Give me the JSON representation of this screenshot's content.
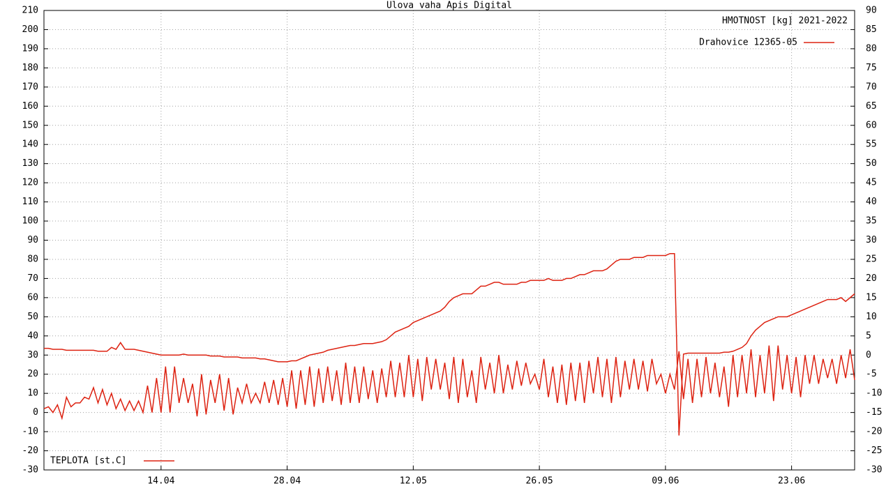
{
  "chart_data": {
    "type": "line",
    "title": "Ulova vaha Apis Digital",
    "annotation": "HMOTNOST [kg] 2021-2022",
    "categories": [
      null,
      null,
      null,
      null,
      null,
      null,
      null,
      null,
      null,
      null,
      null,
      null,
      null,
      null,
      null,
      null,
      null,
      null,
      null,
      null,
      null,
      null,
      null,
      null,
      null,
      null,
      "14.04",
      null,
      null,
      null,
      null,
      null,
      null,
      null,
      null,
      null,
      null,
      null,
      null,
      null,
      null,
      null,
      null,
      null,
      null,
      null,
      null,
      null,
      null,
      null,
      null,
      null,
      null,
      null,
      "28.04",
      null,
      null,
      null,
      null,
      null,
      null,
      null,
      null,
      null,
      null,
      null,
      null,
      null,
      null,
      null,
      null,
      null,
      null,
      null,
      null,
      null,
      null,
      null,
      null,
      null,
      null,
      null,
      "12.05",
      null,
      null,
      null,
      null,
      null,
      null,
      null,
      null,
      null,
      null,
      null,
      null,
      null,
      null,
      null,
      null,
      null,
      null,
      null,
      null,
      null,
      null,
      null,
      null,
      null,
      null,
      null,
      "26.05",
      null,
      null,
      null,
      null,
      null,
      null,
      null,
      null,
      null,
      null,
      null,
      null,
      null,
      null,
      null,
      null,
      null,
      null,
      null,
      null,
      null,
      null,
      null,
      null,
      null,
      null,
      null,
      "09.06",
      null,
      null,
      null,
      null,
      null,
      null,
      null,
      null,
      null,
      null,
      null,
      null,
      null,
      null,
      null,
      null,
      null,
      null,
      null,
      null,
      null,
      null,
      null,
      null,
      null,
      null,
      null,
      "23.06",
      null,
      null,
      null,
      null,
      null,
      null,
      null,
      null,
      null,
      null,
      null,
      null,
      null,
      null
    ],
    "series": [
      {
        "name": "Drahovice 12365-05",
        "color": "#dd2211",
        "values": [
          33.5,
          33.5,
          33,
          33,
          33,
          32.5,
          32.5,
          32.5,
          32.5,
          32.5,
          32.5,
          32.5,
          32,
          32,
          32,
          34,
          33,
          36.5,
          33,
          33,
          33,
          32.5,
          32,
          31.5,
          31,
          30.5,
          30,
          30,
          30,
          30,
          30,
          30.5,
          30,
          30,
          30,
          30,
          30,
          29.5,
          29.5,
          29.5,
          29,
          29,
          29,
          29,
          28.5,
          28.5,
          28.5,
          28.5,
          28,
          28,
          27.5,
          27,
          26.5,
          26.5,
          26.5,
          27,
          27,
          28,
          29,
          30,
          30.5,
          31,
          31.5,
          32.5,
          33,
          33.5,
          34,
          34.5,
          35,
          35,
          35.5,
          36,
          36,
          36,
          36.5,
          37,
          38,
          40,
          42,
          43,
          44,
          45,
          47,
          48,
          49,
          50,
          51,
          52,
          53,
          55,
          58,
          60,
          61,
          62,
          62,
          62,
          64,
          66,
          66,
          67,
          68,
          68,
          67,
          67,
          67,
          67,
          68,
          68,
          69,
          69,
          69,
          69,
          70,
          69,
          69,
          69,
          70,
          70,
          71,
          72,
          72,
          73,
          74,
          74,
          74,
          75,
          77,
          79,
          80,
          80,
          80,
          81,
          81,
          81,
          82,
          82,
          82,
          82,
          82,
          83,
          83,
          -12,
          30.5,
          31,
          31,
          31,
          31,
          31,
          31,
          31,
          31,
          31.5,
          31.5,
          32,
          33,
          34,
          36,
          40,
          43,
          45,
          47,
          48,
          49,
          50,
          50,
          50,
          51,
          52,
          53,
          54,
          55,
          56,
          57,
          58,
          59,
          59,
          59,
          60,
          58,
          60,
          62
        ]
      },
      {
        "name": "TEPLOTA [st.C]",
        "color": "#dd2211",
        "values": [
          2,
          3,
          0,
          4,
          -3,
          8,
          3,
          5,
          5,
          8,
          7,
          13,
          5,
          12,
          4,
          10,
          2,
          7,
          1,
          6,
          1,
          6,
          0,
          14,
          0,
          18,
          0,
          24,
          0,
          24,
          5,
          18,
          5,
          15,
          -2,
          20,
          -1,
          17,
          5,
          20,
          1,
          18,
          -1,
          13,
          5,
          15,
          5,
          10,
          5,
          16,
          5,
          17,
          4,
          18,
          3,
          22,
          2,
          22,
          4,
          24,
          3,
          23,
          5,
          24,
          6,
          22,
          4,
          26,
          5,
          24,
          5,
          24,
          7,
          22,
          5,
          23,
          8,
          27,
          8,
          26,
          8,
          30,
          8,
          28,
          6,
          29,
          12,
          28,
          12,
          26,
          7,
          29,
          5,
          28,
          8,
          22,
          5,
          29,
          12,
          26,
          10,
          30,
          10,
          25,
          12,
          27,
          14,
          26,
          15,
          20,
          12,
          28,
          8,
          24,
          5,
          25,
          4,
          26,
          6,
          26,
          5,
          27,
          10,
          29,
          8,
          28,
          5,
          29,
          8,
          27,
          12,
          28,
          12,
          27,
          11,
          28,
          15,
          20,
          10,
          20,
          12,
          32,
          7,
          28,
          5,
          28,
          8,
          29,
          10,
          26,
          8,
          24,
          3,
          30,
          8,
          30,
          10,
          33,
          8,
          30,
          10,
          35,
          6,
          35,
          12,
          30,
          10,
          29,
          8,
          30,
          15,
          30,
          15,
          28,
          18,
          28,
          15,
          30,
          18,
          33,
          17
        ]
      }
    ],
    "ylim": [
      -30,
      210
    ],
    "yticks": [
      -30,
      -20,
      -10,
      0,
      10,
      20,
      30,
      40,
      50,
      60,
      70,
      80,
      90,
      100,
      110,
      120,
      130,
      140,
      150,
      160,
      170,
      180,
      190,
      200,
      210
    ],
    "y2lim": [
      -30,
      90
    ],
    "y2ticks": [
      -30,
      -25,
      -20,
      -15,
      -10,
      -5,
      0,
      5,
      10,
      15,
      20,
      25,
      30,
      35,
      40,
      45,
      50,
      55,
      60,
      65,
      70,
      75,
      80,
      85,
      90
    ],
    "grid": true
  }
}
